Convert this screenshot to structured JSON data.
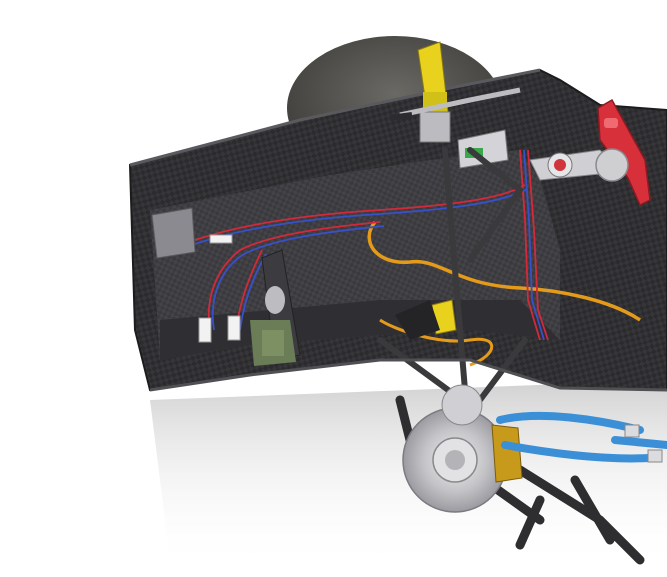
{
  "scene": {
    "subject": "carbon-fiber-race-car-chassis-render",
    "colors": {
      "background": "#ffffff",
      "carbon": "#2b2b2d",
      "carbon_light": "#4a4a4e",
      "tire": "#4c4b47",
      "steering_wheel": "#d8303a",
      "yellow_actuator": "#e8d21e",
      "orange_hose": "#e49a1a",
      "blue_hose": "#3a8fd6",
      "brake_caliper": "#c89a1c",
      "brake_disc": "#c8c8cc",
      "wire_red": "#d22a3a",
      "wire_blue": "#3850c8"
    }
  }
}
